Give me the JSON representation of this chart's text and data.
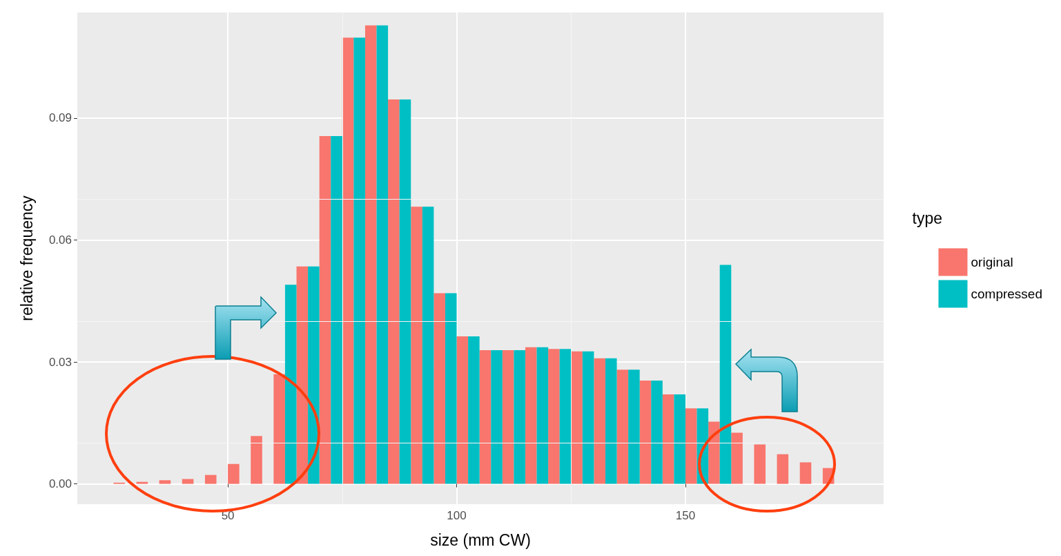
{
  "chart_data": {
    "type": "bar",
    "xlabel": "size (mm CW)",
    "ylabel": "relative frequency",
    "legend_title": "type",
    "x": [
      27.5,
      32.5,
      37.5,
      42.5,
      47.5,
      52.5,
      57.5,
      62.5,
      67.5,
      72.5,
      77.5,
      82.5,
      87.5,
      92.5,
      97.5,
      102.5,
      107.5,
      112.5,
      117.5,
      122.5,
      127.5,
      132.5,
      137.5,
      142.5,
      147.5,
      152.5,
      157.5,
      162.5,
      167.5,
      172.5,
      177.5,
      182.5
    ],
    "series": [
      {
        "name": "original",
        "color": "#f8766d",
        "values": [
          0.0003,
          0.0005,
          0.0009,
          0.0012,
          0.0022,
          0.0049,
          0.0118,
          0.027,
          0.0535,
          0.0856,
          0.1098,
          0.1128,
          0.0946,
          0.0682,
          0.0469,
          0.0363,
          0.0329,
          0.0329,
          0.0336,
          0.0332,
          0.0326,
          0.0309,
          0.0281,
          0.0254,
          0.022,
          0.0186,
          0.0153,
          0.0126,
          0.0097,
          0.0073,
          0.0053,
          0.0039
        ]
      },
      {
        "name": "compressed",
        "color": "#00bfc4",
        "values": [
          null,
          null,
          null,
          null,
          null,
          null,
          null,
          0.049,
          0.0535,
          0.0856,
          0.1098,
          0.1128,
          0.0946,
          0.0682,
          0.0469,
          0.0363,
          0.0329,
          0.0329,
          0.0336,
          0.0332,
          0.0326,
          0.0309,
          0.0281,
          0.0254,
          0.022,
          0.0186,
          0.0539,
          null,
          null,
          null,
          null,
          null
        ]
      }
    ],
    "xlim": [
      17.1,
      193.3
    ],
    "xticks": [
      50,
      100,
      150
    ],
    "ylim": [
      -0.005,
      0.116
    ],
    "yticks": [
      {
        "value": 0,
        "label": "0.00"
      },
      0.03,
      0.06,
      0.09
    ],
    "grid": true,
    "legend": "right"
  }
}
